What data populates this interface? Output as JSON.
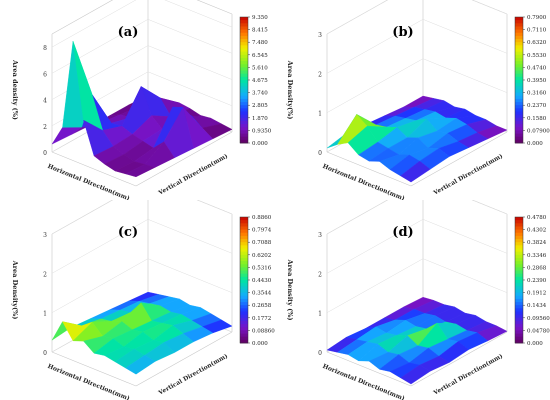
{
  "figure": {
    "chart_data": [
      {
        "type": "surface3d",
        "panel_label": "(a)",
        "zlabel": "Area density (%)",
        "xlabel": "Horizontal Direction(mm)",
        "ylabel": "Vertical Direction(mm)",
        "zlim": [
          0,
          9
        ],
        "z_ticks": [
          "0",
          "2",
          "4",
          "6",
          "8"
        ],
        "colorbar_ticks": [
          "9.350",
          "8.415",
          "7.480",
          "6.545",
          "5.610",
          "4.675",
          "3.740",
          "2.805",
          "1.870",
          "0.9350",
          "0.000"
        ],
        "colorbar_range": [
          0,
          9.35
        ],
        "grid": [
          [
            0.6,
            2.2,
            9.1,
            3.4,
            1.0,
            0.7,
            0.5,
            0.6,
            0.7
          ],
          [
            0.5,
            1.4,
            4.2,
            1.8,
            0.9,
            0.6,
            0.4,
            0.5,
            0.6
          ],
          [
            0.4,
            0.9,
            1.2,
            1.3,
            1.0,
            0.8,
            0.6,
            1.4,
            0.5
          ],
          [
            0.3,
            0.7,
            0.8,
            3.5,
            1.6,
            0.9,
            2.9,
            3.2,
            0.4
          ],
          [
            0.3,
            0.5,
            0.6,
            1.8,
            0.7,
            0.5,
            1.4,
            0.8,
            0.3
          ],
          [
            0.2,
            0.3,
            0.4,
            0.6,
            0.5,
            0.3,
            0.4,
            0.3,
            0.2
          ]
        ]
      },
      {
        "type": "surface3d",
        "panel_label": "(b)",
        "zlabel": "Area Density(%)",
        "xlabel": "Horizontal Direction(mm)",
        "ylabel": "Vertical Direction(mm)",
        "zlim": [
          0,
          3
        ],
        "z_ticks": [
          "0",
          "1",
          "2",
          "3"
        ],
        "colorbar_ticks": [
          "0.7900",
          "0.7110",
          "0.6320",
          "0.5530",
          "0.4740",
          "0.3950",
          "0.3160",
          "0.2370",
          "0.1580",
          "0.07900",
          "0.000"
        ],
        "colorbar_range": [
          0,
          0.79
        ],
        "grid": [
          [
            0.1,
            0.3,
            0.45,
            0.25,
            0.2,
            0.3,
            0.2,
            0.15,
            0.1
          ],
          [
            0.2,
            0.79,
            0.6,
            0.3,
            0.25,
            0.2,
            0.3,
            0.25,
            0.15
          ],
          [
            0.15,
            0.25,
            0.3,
            0.4,
            0.25,
            0.35,
            0.2,
            0.3,
            0.2
          ],
          [
            0.1,
            0.2,
            0.25,
            0.3,
            0.45,
            0.25,
            0.3,
            0.2,
            0.15
          ],
          [
            0.05,
            0.15,
            0.2,
            0.25,
            0.2,
            0.3,
            0.25,
            0.15,
            0.1
          ],
          [
            0.05,
            0.1,
            0.15,
            0.1,
            0.15,
            0.1,
            0.1,
            0.05,
            0.05
          ]
        ]
      },
      {
        "type": "surface3d",
        "panel_label": "(c)",
        "zlabel": "Area Density(%)",
        "xlabel": "Horizontal Direction(mm)",
        "ylabel": "Vertical Direction(mm)",
        "zlim": [
          0,
          3
        ],
        "z_ticks": [
          "0",
          "1",
          "2",
          "3"
        ],
        "colorbar_ticks": [
          "0.8860",
          "0.7974",
          "0.7088",
          "0.6202",
          "0.5316",
          "0.4430",
          "0.3544",
          "0.2658",
          "0.1772",
          "0.08860",
          "0.000"
        ],
        "colorbar_range": [
          0,
          0.886
        ],
        "grid": [
          [
            0.3,
            0.88,
            0.5,
            0.6,
            0.4,
            0.45,
            0.4,
            0.35,
            0.3
          ],
          [
            0.35,
            0.5,
            0.7,
            0.45,
            0.5,
            0.4,
            0.45,
            0.4,
            0.35
          ],
          [
            0.3,
            0.4,
            0.45,
            0.55,
            0.45,
            0.5,
            0.4,
            0.45,
            0.3
          ],
          [
            0.25,
            0.35,
            0.4,
            0.75,
            0.4,
            0.45,
            0.5,
            0.4,
            0.3
          ],
          [
            0.2,
            0.3,
            0.35,
            0.4,
            0.35,
            0.4,
            0.35,
            0.3,
            0.25
          ],
          [
            0.15,
            0.2,
            0.25,
            0.3,
            0.25,
            0.3,
            0.25,
            0.2,
            0.15
          ]
        ]
      },
      {
        "type": "surface3d",
        "panel_label": "(d)",
        "zlabel": "Area Density (%)",
        "xlabel": "Horizontal Direction(mm)",
        "ylabel": "Vertical Direction(mm)",
        "zlim": [
          0,
          3
        ],
        "z_ticks": [
          "0",
          "1",
          "2",
          "3"
        ],
        "colorbar_ticks": [
          "0.4780",
          "0.4302",
          "0.3824",
          "0.3346",
          "0.2868",
          "0.2390",
          "0.1912",
          "0.1434",
          "0.09560",
          "0.04780",
          "0.000"
        ],
        "colorbar_range": [
          0,
          0.478
        ],
        "grid": [
          [
            0.05,
            0.1,
            0.15,
            0.1,
            0.2,
            0.1,
            0.15,
            0.1,
            0.05
          ],
          [
            0.1,
            0.15,
            0.2,
            0.25,
            0.15,
            0.2,
            0.1,
            0.15,
            0.1
          ],
          [
            0.05,
            0.2,
            0.15,
            0.2,
            0.3,
            0.15,
            0.2,
            0.1,
            0.05
          ],
          [
            0.05,
            0.1,
            0.2,
            0.15,
            0.2,
            0.45,
            0.15,
            0.2,
            0.1
          ],
          [
            0.05,
            0.1,
            0.1,
            0.15,
            0.1,
            0.15,
            0.1,
            0.15,
            0.05
          ],
          [
            0.02,
            0.05,
            0.05,
            0.1,
            0.05,
            0.1,
            0.05,
            0.05,
            0.02
          ]
        ]
      }
    ]
  }
}
